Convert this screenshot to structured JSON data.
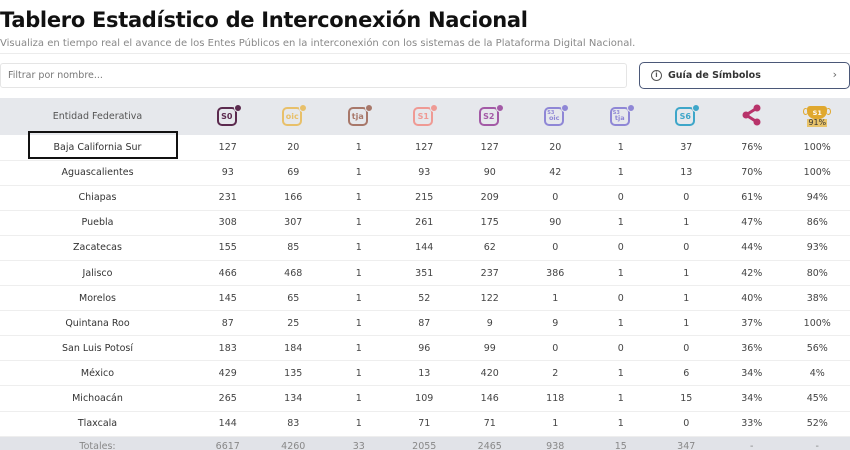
{
  "header": {
    "title": "Tablero Estadístico de Interconexión Nacional",
    "subtitle": "Visualiza en tiempo real el avance de los Entes Públicos en la interconexión con los sistemas de la Plataforma Digital Nacional."
  },
  "filter": {
    "placeholder": "Filtrar por nombre...",
    "value": ""
  },
  "guide_button": {
    "label": "Guía de Símbolos",
    "icon": "info-icon",
    "chevron": "›"
  },
  "table": {
    "entity_header": "Entidad Federativa",
    "columns": [
      {
        "id": "s0",
        "label": "S0",
        "icon": "s0-icon",
        "color": "#5b2a4e"
      },
      {
        "id": "oic",
        "label": "oic",
        "icon": "oic-icon",
        "color": "#e8c06a"
      },
      {
        "id": "tja",
        "label": "tja",
        "icon": "tja-icon",
        "color": "#a8786a"
      },
      {
        "id": "s1",
        "label": "S1",
        "icon": "s1-icon",
        "color": "#ef9a94"
      },
      {
        "id": "s2",
        "label": "S2",
        "icon": "s2-icon",
        "color": "#a35aa6"
      },
      {
        "id": "s3oic",
        "label": "oic",
        "sup": "S3",
        "icon": "s3-oic-icon",
        "color": "#8f87d6"
      },
      {
        "id": "s3tja",
        "label": "tja",
        "sup": "S3",
        "icon": "s3-tja-icon",
        "color": "#8f87d6"
      },
      {
        "id": "s6",
        "label": "S6",
        "icon": "s6-icon",
        "color": "#3ea6c9"
      },
      {
        "id": "share",
        "icon": "share-icon",
        "color": "#b8336a"
      },
      {
        "id": "trophy",
        "label": "S1",
        "pct": "91%",
        "icon": "trophy-icon",
        "color": "#e0a82e"
      }
    ],
    "rows": [
      {
        "entity": "Baja California Sur",
        "values": [
          "127",
          "20",
          "1",
          "127",
          "127",
          "20",
          "1",
          "37",
          "76%",
          "100%"
        ]
      },
      {
        "entity": "Aguascalientes",
        "values": [
          "93",
          "69",
          "1",
          "93",
          "90",
          "42",
          "1",
          "13",
          "70%",
          "100%"
        ]
      },
      {
        "entity": "Chiapas",
        "values": [
          "231",
          "166",
          "1",
          "215",
          "209",
          "0",
          "0",
          "0",
          "61%",
          "94%"
        ]
      },
      {
        "entity": "Puebla",
        "values": [
          "308",
          "307",
          "1",
          "261",
          "175",
          "90",
          "1",
          "1",
          "47%",
          "86%"
        ]
      },
      {
        "entity": "Zacatecas",
        "values": [
          "155",
          "85",
          "1",
          "144",
          "62",
          "0",
          "0",
          "0",
          "44%",
          "93%"
        ]
      },
      {
        "entity": "Jalisco",
        "values": [
          "466",
          "468",
          "1",
          "351",
          "237",
          "386",
          "1",
          "1",
          "42%",
          "80%"
        ]
      },
      {
        "entity": "Morelos",
        "values": [
          "145",
          "65",
          "1",
          "52",
          "122",
          "1",
          "0",
          "1",
          "40%",
          "38%"
        ]
      },
      {
        "entity": "Quintana Roo",
        "values": [
          "87",
          "25",
          "1",
          "87",
          "9",
          "9",
          "1",
          "1",
          "37%",
          "100%"
        ]
      },
      {
        "entity": "San Luis Potosí",
        "values": [
          "183",
          "184",
          "1",
          "96",
          "99",
          "0",
          "0",
          "0",
          "36%",
          "56%"
        ]
      },
      {
        "entity": "México",
        "values": [
          "429",
          "135",
          "1",
          "13",
          "420",
          "2",
          "1",
          "6",
          "34%",
          "4%"
        ]
      },
      {
        "entity": "Michoacán",
        "values": [
          "265",
          "134",
          "1",
          "109",
          "146",
          "118",
          "1",
          "15",
          "34%",
          "45%"
        ]
      },
      {
        "entity": "Tlaxcala",
        "values": [
          "144",
          "83",
          "1",
          "71",
          "71",
          "1",
          "1",
          "0",
          "33%",
          "52%"
        ]
      }
    ],
    "totals": {
      "label": "Totales:",
      "values": [
        "6617",
        "4260",
        "33",
        "2055",
        "2465",
        "938",
        "15",
        "347",
        "-",
        "-"
      ]
    }
  }
}
